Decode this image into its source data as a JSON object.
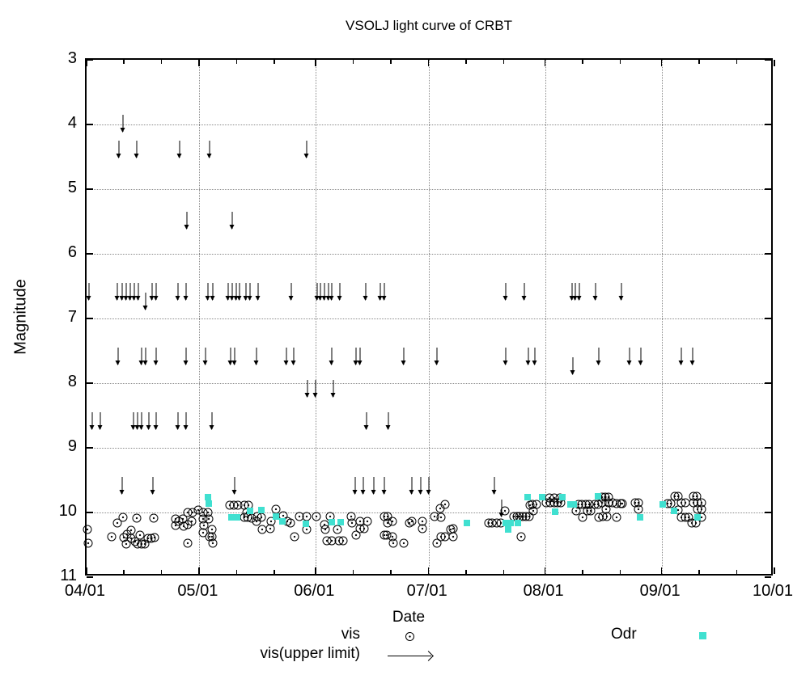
{
  "title": "VSOLJ light curve of CRBT",
  "axes": {
    "xlabel": "Date",
    "ylabel": "Magnitude",
    "x_tick_labels": [
      "04/01",
      "05/01",
      "06/01",
      "07/01",
      "08/01",
      "09/01",
      "10/01"
    ],
    "x_tick_days": [
      0,
      30,
      61,
      91,
      122,
      153,
      183
    ],
    "x_minor_tick_days": [
      10,
      20,
      40,
      50,
      71,
      81,
      101,
      111,
      132,
      142,
      163,
      173
    ],
    "y_tick_labels": [
      "3",
      "4",
      "5",
      "6",
      "7",
      "8",
      "9",
      "10",
      "11"
    ],
    "y_tick_values": [
      3,
      4,
      5,
      6,
      7,
      8,
      9,
      10,
      11
    ],
    "y_range": [
      3,
      11
    ],
    "x_range_days": [
      0,
      183
    ],
    "y_inverted": true,
    "grid": true
  },
  "legend": {
    "vis": "vis",
    "upper": "vis(upper limit)",
    "odr": "Odr",
    "position": "bottom"
  },
  "colors": {
    "vis": "#000000",
    "odr": "#40e0d0",
    "grid": "#8a8a8a",
    "background": "#ffffff"
  },
  "chart_data": {
    "type": "scatter",
    "title": "VSOLJ light curve of CRBT",
    "xlabel": "Date",
    "ylabel": "Magnitude",
    "x_unit": "days since 04/01",
    "ylim": [
      11,
      3
    ],
    "series": [
      {
        "name": "vis",
        "marker": "open-circle",
        "color": "#000000",
        "points": [
          [
            0.2,
            10.26
          ],
          [
            0.4,
            10.48
          ],
          [
            6.7,
            10.38
          ],
          [
            8.2,
            10.16
          ],
          [
            9.7,
            10.08
          ],
          [
            9.9,
            10.39
          ],
          [
            10.8,
            10.34
          ],
          [
            10.5,
            10.49
          ],
          [
            11.8,
            10.28
          ],
          [
            11.8,
            10.4
          ],
          [
            12.9,
            10.45
          ],
          [
            13.3,
            10.09
          ],
          [
            13.6,
            10.49
          ],
          [
            14.2,
            10.35
          ],
          [
            14.6,
            10.49
          ],
          [
            15.5,
            10.49
          ],
          [
            16.4,
            10.4
          ],
          [
            17.2,
            10.4
          ],
          [
            17.9,
            10.09
          ],
          [
            18.1,
            10.39
          ],
          [
            23.7,
            10.1
          ],
          [
            23.7,
            10.2
          ],
          [
            24.5,
            10.14
          ],
          [
            25.6,
            10.1
          ],
          [
            25.8,
            10.21
          ],
          [
            26.9,
            10.0
          ],
          [
            26.9,
            10.19
          ],
          [
            28.0,
            10.14
          ],
          [
            28.2,
            10.0
          ],
          [
            26.9,
            10.48
          ],
          [
            29.7,
            9.96
          ],
          [
            31.0,
            10.0
          ],
          [
            31.0,
            10.1
          ],
          [
            31.2,
            10.2
          ],
          [
            31.0,
            10.31
          ],
          [
            32.3,
            10.0
          ],
          [
            32.5,
            10.1
          ],
          [
            32.7,
            10.38
          ],
          [
            33.4,
            10.26
          ],
          [
            33.4,
            10.38
          ],
          [
            33.6,
            10.48
          ],
          [
            38.1,
            9.89
          ],
          [
            39.2,
            9.89
          ],
          [
            40.3,
            9.89
          ],
          [
            42.0,
            9.89
          ],
          [
            43.1,
            9.89
          ],
          [
            42.6,
            10.0
          ],
          [
            42.0,
            10.08
          ],
          [
            42.8,
            10.08
          ],
          [
            43.9,
            10.09
          ],
          [
            45.2,
            10.14
          ],
          [
            45.4,
            10.06
          ],
          [
            46.5,
            10.08
          ],
          [
            46.7,
            10.26
          ],
          [
            48.9,
            10.25
          ],
          [
            49.1,
            10.14
          ],
          [
            50.4,
            9.95
          ],
          [
            52.3,
            10.05
          ],
          [
            53.4,
            10.14
          ],
          [
            54.2,
            10.16
          ],
          [
            55.3,
            10.38
          ],
          [
            56.6,
            10.06
          ],
          [
            58.6,
            10.06
          ],
          [
            58.6,
            10.26
          ],
          [
            61.1,
            10.06
          ],
          [
            63.3,
            10.19
          ],
          [
            63.5,
            10.26
          ],
          [
            63.9,
            10.44
          ],
          [
            64.8,
            10.06
          ],
          [
            65.2,
            10.44
          ],
          [
            66.7,
            10.26
          ],
          [
            67.2,
            10.44
          ],
          [
            68.2,
            10.44
          ],
          [
            70.4,
            10.06
          ],
          [
            70.6,
            10.16
          ],
          [
            71.7,
            10.35
          ],
          [
            72.8,
            10.14
          ],
          [
            72.8,
            10.25
          ],
          [
            73.8,
            10.25
          ],
          [
            74.7,
            10.14
          ],
          [
            79.2,
            10.06
          ],
          [
            80.1,
            10.06
          ],
          [
            80.1,
            10.16
          ],
          [
            81.4,
            10.14
          ],
          [
            79.2,
            10.35
          ],
          [
            79.9,
            10.35
          ],
          [
            81.4,
            10.38
          ],
          [
            81.6,
            10.48
          ],
          [
            84.4,
            10.48
          ],
          [
            85.9,
            10.16
          ],
          [
            86.5,
            10.14
          ],
          [
            89.4,
            10.14
          ],
          [
            89.4,
            10.25
          ],
          [
            92.6,
            10.06
          ],
          [
            93.2,
            10.48
          ],
          [
            94.1,
            9.94
          ],
          [
            94.3,
            10.08
          ],
          [
            94.3,
            10.38
          ],
          [
            95.4,
            9.88
          ],
          [
            95.4,
            10.38
          ],
          [
            96.9,
            10.26
          ],
          [
            97.5,
            10.25
          ],
          [
            97.5,
            10.38
          ],
          [
            107.0,
            10.16
          ],
          [
            107.9,
            10.16
          ],
          [
            109.1,
            10.16
          ],
          [
            110.2,
            10.16
          ],
          [
            111.3,
            9.98
          ],
          [
            113.7,
            10.06
          ],
          [
            114.5,
            10.06
          ],
          [
            115.2,
            10.06
          ],
          [
            115.6,
            10.38
          ],
          [
            116.0,
            10.06
          ],
          [
            116.9,
            10.06
          ],
          [
            117.8,
            10.06
          ],
          [
            118.6,
            9.88
          ],
          [
            118.8,
            9.98
          ],
          [
            119.7,
            9.88
          ],
          [
            118.0,
            9.89
          ],
          [
            122.3,
            9.85
          ],
          [
            123.4,
            9.85
          ],
          [
            124.4,
            9.85
          ],
          [
            125.3,
            9.85
          ],
          [
            126.2,
            9.85
          ],
          [
            123.1,
            9.78
          ],
          [
            124.4,
            9.78
          ],
          [
            125.9,
            9.78
          ],
          [
            130.9,
            9.88
          ],
          [
            131.7,
            9.88
          ],
          [
            132.8,
            9.88
          ],
          [
            133.7,
            9.88
          ],
          [
            130.2,
            9.98
          ],
          [
            132.0,
            10.08
          ],
          [
            133.3,
            9.98
          ],
          [
            134.1,
            9.98
          ],
          [
            135.2,
            9.88
          ],
          [
            136.1,
            9.88
          ],
          [
            137.1,
            9.85
          ],
          [
            136.3,
            10.08
          ],
          [
            137.1,
            9.76
          ],
          [
            138.0,
            9.76
          ],
          [
            138.9,
            9.76
          ],
          [
            138.9,
            9.85
          ],
          [
            139.9,
            9.85
          ],
          [
            141.0,
            9.86
          ],
          [
            142.1,
            9.86
          ],
          [
            142.5,
            9.86
          ],
          [
            138.2,
            9.95
          ],
          [
            137.3,
            10.06
          ],
          [
            138.4,
            10.06
          ],
          [
            141.0,
            10.08
          ],
          [
            146.0,
            9.85
          ],
          [
            146.8,
            9.85
          ],
          [
            146.8,
            9.95
          ],
          [
            154.6,
            9.86
          ],
          [
            155.4,
            9.86
          ],
          [
            156.5,
            9.75
          ],
          [
            157.4,
            9.75
          ],
          [
            158.2,
            9.85
          ],
          [
            159.3,
            9.85
          ],
          [
            157.4,
            9.96
          ],
          [
            158.2,
            10.08
          ],
          [
            159.3,
            10.08
          ],
          [
            160.2,
            10.08
          ],
          [
            161.5,
            9.75
          ],
          [
            162.3,
            9.75
          ],
          [
            161.5,
            9.85
          ],
          [
            162.5,
            9.85
          ],
          [
            163.6,
            9.85
          ],
          [
            162.5,
            9.95
          ],
          [
            163.6,
            9.95
          ],
          [
            161.0,
            10.16
          ],
          [
            162.1,
            10.16
          ],
          [
            163.6,
            10.08
          ]
        ]
      },
      {
        "name": "Odr",
        "marker": "filled-square",
        "color": "#40e0d0",
        "points": [
          [
            32.3,
            9.76
          ],
          [
            32.5,
            9.86
          ],
          [
            38.5,
            10.08
          ],
          [
            40.0,
            10.08
          ],
          [
            43.5,
            9.98
          ],
          [
            46.5,
            9.96
          ],
          [
            50.4,
            10.06
          ],
          [
            52.1,
            10.14
          ],
          [
            58.3,
            10.18
          ],
          [
            65.2,
            10.15
          ],
          [
            67.6,
            10.15
          ],
          [
            101.2,
            10.16
          ],
          [
            111.5,
            10.16
          ],
          [
            112.8,
            10.16
          ],
          [
            114.7,
            10.16
          ],
          [
            112.2,
            10.26
          ],
          [
            117.3,
            9.76
          ],
          [
            121.2,
            9.76
          ],
          [
            126.6,
            9.76
          ],
          [
            124.7,
            9.99
          ],
          [
            128.7,
            9.88
          ],
          [
            129.6,
            9.88
          ],
          [
            136.1,
            9.75
          ],
          [
            147.2,
            10.08
          ],
          [
            153.3,
            9.88
          ],
          [
            156.3,
            9.98
          ],
          [
            162.5,
            10.08
          ]
        ]
      },
      {
        "name": "vis(upper limit)",
        "marker": "down-arrow",
        "color": "#000000",
        "points": [
          [
            9.7,
            3.85
          ],
          [
            8.6,
            4.25
          ],
          [
            13.3,
            4.25
          ],
          [
            24.8,
            4.25
          ],
          [
            32.7,
            4.25
          ],
          [
            58.6,
            4.25
          ],
          [
            26.7,
            5.35
          ],
          [
            38.8,
            5.35
          ],
          [
            0.6,
            6.45
          ],
          [
            8.2,
            6.45
          ],
          [
            9.5,
            6.45
          ],
          [
            10.5,
            6.45
          ],
          [
            11.6,
            6.45
          ],
          [
            12.7,
            6.45
          ],
          [
            13.8,
            6.45
          ],
          [
            15.7,
            6.6
          ],
          [
            17.4,
            6.45
          ],
          [
            18.5,
            6.45
          ],
          [
            24.3,
            6.45
          ],
          [
            26.5,
            6.45
          ],
          [
            32.3,
            6.45
          ],
          [
            33.6,
            6.45
          ],
          [
            37.7,
            6.45
          ],
          [
            38.8,
            6.45
          ],
          [
            39.8,
            6.45
          ],
          [
            40.7,
            6.45
          ],
          [
            42.4,
            6.45
          ],
          [
            43.5,
            6.45
          ],
          [
            45.6,
            6.45
          ],
          [
            54.5,
            6.45
          ],
          [
            61.4,
            6.45
          ],
          [
            62.2,
            6.45
          ],
          [
            63.3,
            6.45
          ],
          [
            64.4,
            6.45
          ],
          [
            65.2,
            6.45
          ],
          [
            67.4,
            6.45
          ],
          [
            74.3,
            6.45
          ],
          [
            78.1,
            6.45
          ],
          [
            79.2,
            6.45
          ],
          [
            111.5,
            6.45
          ],
          [
            116.5,
            6.45
          ],
          [
            129.2,
            6.45
          ],
          [
            130.0,
            6.45
          ],
          [
            131.1,
            6.45
          ],
          [
            135.4,
            6.45
          ],
          [
            142.3,
            6.45
          ],
          [
            8.4,
            7.45
          ],
          [
            14.6,
            7.45
          ],
          [
            15.7,
            7.45
          ],
          [
            18.5,
            7.45
          ],
          [
            26.5,
            7.45
          ],
          [
            31.6,
            7.45
          ],
          [
            38.3,
            7.45
          ],
          [
            39.4,
            7.45
          ],
          [
            45.2,
            7.45
          ],
          [
            53.2,
            7.45
          ],
          [
            55.1,
            7.45
          ],
          [
            65.2,
            7.45
          ],
          [
            71.7,
            7.45
          ],
          [
            72.8,
            7.45
          ],
          [
            84.4,
            7.45
          ],
          [
            93.2,
            7.45
          ],
          [
            111.5,
            7.45
          ],
          [
            117.5,
            7.45
          ],
          [
            119.3,
            7.45
          ],
          [
            129.4,
            7.6
          ],
          [
            136.3,
            7.45
          ],
          [
            144.5,
            7.45
          ],
          [
            147.5,
            7.45
          ],
          [
            158.2,
            7.45
          ],
          [
            161.3,
            7.45
          ],
          [
            58.8,
            7.95
          ],
          [
            60.9,
            7.95
          ],
          [
            65.7,
            7.95
          ],
          [
            1.5,
            8.45
          ],
          [
            3.7,
            8.45
          ],
          [
            12.5,
            8.45
          ],
          [
            13.6,
            8.45
          ],
          [
            14.6,
            8.45
          ],
          [
            16.6,
            8.45
          ],
          [
            18.5,
            8.45
          ],
          [
            24.3,
            8.45
          ],
          [
            26.5,
            8.45
          ],
          [
            33.4,
            8.45
          ],
          [
            74.5,
            8.45
          ],
          [
            80.3,
            8.45
          ],
          [
            9.5,
            9.45
          ],
          [
            17.7,
            9.45
          ],
          [
            39.4,
            9.45
          ],
          [
            71.5,
            9.45
          ],
          [
            73.6,
            9.45
          ],
          [
            76.4,
            9.45
          ],
          [
            79.2,
            9.45
          ],
          [
            86.5,
            9.45
          ],
          [
            88.9,
            9.45
          ],
          [
            91.1,
            9.45
          ],
          [
            108.5,
            9.45
          ],
          [
            110.5,
            9.8
          ]
        ]
      }
    ]
  }
}
